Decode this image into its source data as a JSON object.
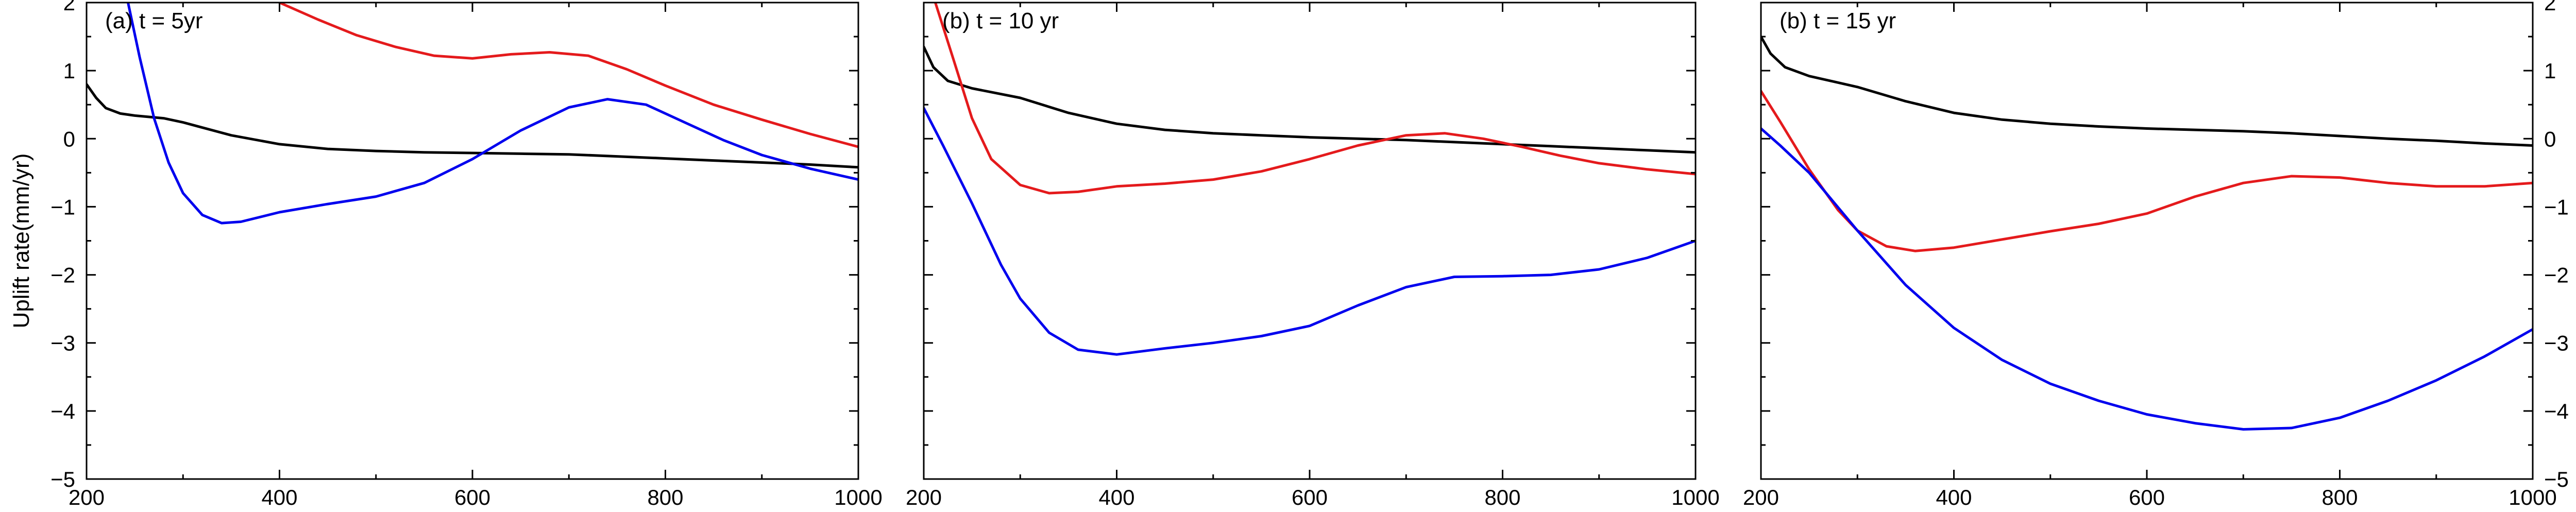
{
  "y_axis_title": "Uplift rate(mm/yr)",
  "chart_data": [
    {
      "type": "line",
      "title": "(a) t = 5yr",
      "xlabel": "",
      "ylabel": "Uplift rate(mm/yr)",
      "xlim": [
        200,
        1000
      ],
      "ylim": [
        -5,
        2
      ],
      "xticks": [
        200,
        400,
        600,
        800,
        1000
      ],
      "yticks": [
        -5,
        -4,
        -3,
        -2,
        -1,
        0,
        1,
        2
      ],
      "grid": false,
      "series": [
        {
          "color": "#000000",
          "x": [
            200,
            210,
            220,
            235,
            250,
            280,
            300,
            350,
            400,
            450,
            500,
            550,
            600,
            650,
            700,
            750,
            800,
            850,
            900,
            950,
            1000
          ],
          "y": [
            0.8,
            0.6,
            0.45,
            0.37,
            0.34,
            0.3,
            0.24,
            0.05,
            -0.08,
            -0.15,
            -0.18,
            -0.2,
            -0.21,
            -0.22,
            -0.23,
            -0.26,
            -0.29,
            -0.32,
            -0.35,
            -0.38,
            -0.42
          ]
        },
        {
          "color": "#e41a1c",
          "x": [
            400,
            440,
            480,
            520,
            560,
            600,
            640,
            680,
            720,
            760,
            800,
            850,
            900,
            950,
            1000
          ],
          "y": [
            2.0,
            1.75,
            1.52,
            1.35,
            1.22,
            1.18,
            1.24,
            1.27,
            1.22,
            1.02,
            0.78,
            0.5,
            0.28,
            0.07,
            -0.12
          ]
        },
        {
          "color": "#0000ee",
          "x": [
            243,
            255,
            270,
            285,
            300,
            320,
            340,
            360,
            400,
            450,
            500,
            550,
            600,
            650,
            700,
            740,
            780,
            820,
            860,
            900,
            950,
            1000
          ],
          "y": [
            2.0,
            1.2,
            0.3,
            -0.35,
            -0.8,
            -1.12,
            -1.24,
            -1.22,
            -1.08,
            -0.96,
            -0.85,
            -0.65,
            -0.3,
            0.12,
            0.46,
            0.58,
            0.5,
            0.24,
            -0.02,
            -0.24,
            -0.44,
            -0.6
          ]
        }
      ]
    },
    {
      "type": "line",
      "title": "(b) t = 10 yr",
      "xlabel": "",
      "ylabel": "",
      "xlim": [
        200,
        1000
      ],
      "ylim": [
        -5,
        2
      ],
      "xticks": [
        200,
        400,
        600,
        800,
        1000
      ],
      "yticks": [
        -5,
        -4,
        -3,
        -2,
        -1,
        0,
        1,
        2
      ],
      "grid": false,
      "series": [
        {
          "color": "#000000",
          "x": [
            200,
            210,
            225,
            250,
            300,
            350,
            400,
            450,
            500,
            550,
            600,
            650,
            700,
            750,
            800,
            850,
            900,
            950,
            1000
          ],
          "y": [
            1.35,
            1.05,
            0.85,
            0.74,
            0.6,
            0.38,
            0.22,
            0.13,
            0.08,
            0.05,
            0.02,
            0.0,
            -0.02,
            -0.05,
            -0.08,
            -0.11,
            -0.14,
            -0.17,
            -0.2
          ]
        },
        {
          "color": "#e41a1c",
          "x": [
            212,
            230,
            250,
            270,
            300,
            330,
            360,
            400,
            450,
            500,
            550,
            600,
            650,
            700,
            740,
            780,
            820,
            860,
            900,
            950,
            1000
          ],
          "y": [
            2.0,
            1.2,
            0.3,
            -0.3,
            -0.68,
            -0.8,
            -0.78,
            -0.7,
            -0.66,
            -0.6,
            -0.48,
            -0.3,
            -0.1,
            0.05,
            0.08,
            0.0,
            -0.12,
            -0.25,
            -0.36,
            -0.45,
            -0.52
          ]
        },
        {
          "color": "#0000ee",
          "x": [
            200,
            220,
            250,
            280,
            300,
            330,
            360,
            400,
            450,
            500,
            550,
            600,
            650,
            700,
            750,
            800,
            850,
            900,
            950,
            1000
          ],
          "y": [
            0.45,
            -0.1,
            -0.95,
            -1.85,
            -2.35,
            -2.85,
            -3.1,
            -3.17,
            -3.08,
            -3.0,
            -2.9,
            -2.75,
            -2.45,
            -2.18,
            -2.03,
            -2.02,
            -2.0,
            -1.92,
            -1.75,
            -1.5
          ]
        }
      ]
    },
    {
      "type": "line",
      "title": "(b) t = 15 yr",
      "xlabel": "",
      "ylabel": "Uplift rate (mm/yr)",
      "xlim": [
        200,
        1000
      ],
      "ylim": [
        -5,
        2
      ],
      "xticks": [
        200,
        400,
        600,
        800,
        1000
      ],
      "yticks": [
        -5,
        -4,
        -3,
        -2,
        -1,
        0,
        1,
        2
      ],
      "grid": false,
      "series": [
        {
          "color": "#000000",
          "x": [
            200,
            210,
            225,
            250,
            300,
            350,
            400,
            450,
            500,
            550,
            600,
            650,
            700,
            750,
            800,
            850,
            900,
            950,
            1000
          ],
          "y": [
            1.5,
            1.25,
            1.05,
            0.92,
            0.76,
            0.55,
            0.38,
            0.28,
            0.22,
            0.18,
            0.15,
            0.13,
            0.11,
            0.08,
            0.04,
            0.0,
            -0.03,
            -0.07,
            -0.1
          ]
        },
        {
          "color": "#e41a1c",
          "x": [
            200,
            220,
            250,
            280,
            300,
            330,
            360,
            400,
            450,
            500,
            550,
            600,
            650,
            700,
            750,
            800,
            850,
            900,
            950,
            1000
          ],
          "y": [
            0.7,
            0.25,
            -0.45,
            -1.05,
            -1.35,
            -1.58,
            -1.65,
            -1.6,
            -1.48,
            -1.36,
            -1.25,
            -1.1,
            -0.85,
            -0.65,
            -0.55,
            -0.57,
            -0.65,
            -0.7,
            -0.7,
            -0.65
          ]
        },
        {
          "color": "#0000ee",
          "x": [
            200,
            220,
            250,
            300,
            350,
            400,
            450,
            500,
            550,
            600,
            650,
            700,
            750,
            800,
            850,
            900,
            950,
            1000
          ],
          "y": [
            0.15,
            -0.1,
            -0.5,
            -1.35,
            -2.15,
            -2.78,
            -3.25,
            -3.6,
            -3.85,
            -4.05,
            -4.18,
            -4.27,
            -4.25,
            -4.1,
            -3.85,
            -3.55,
            -3.2,
            -2.8
          ]
        }
      ]
    }
  ]
}
